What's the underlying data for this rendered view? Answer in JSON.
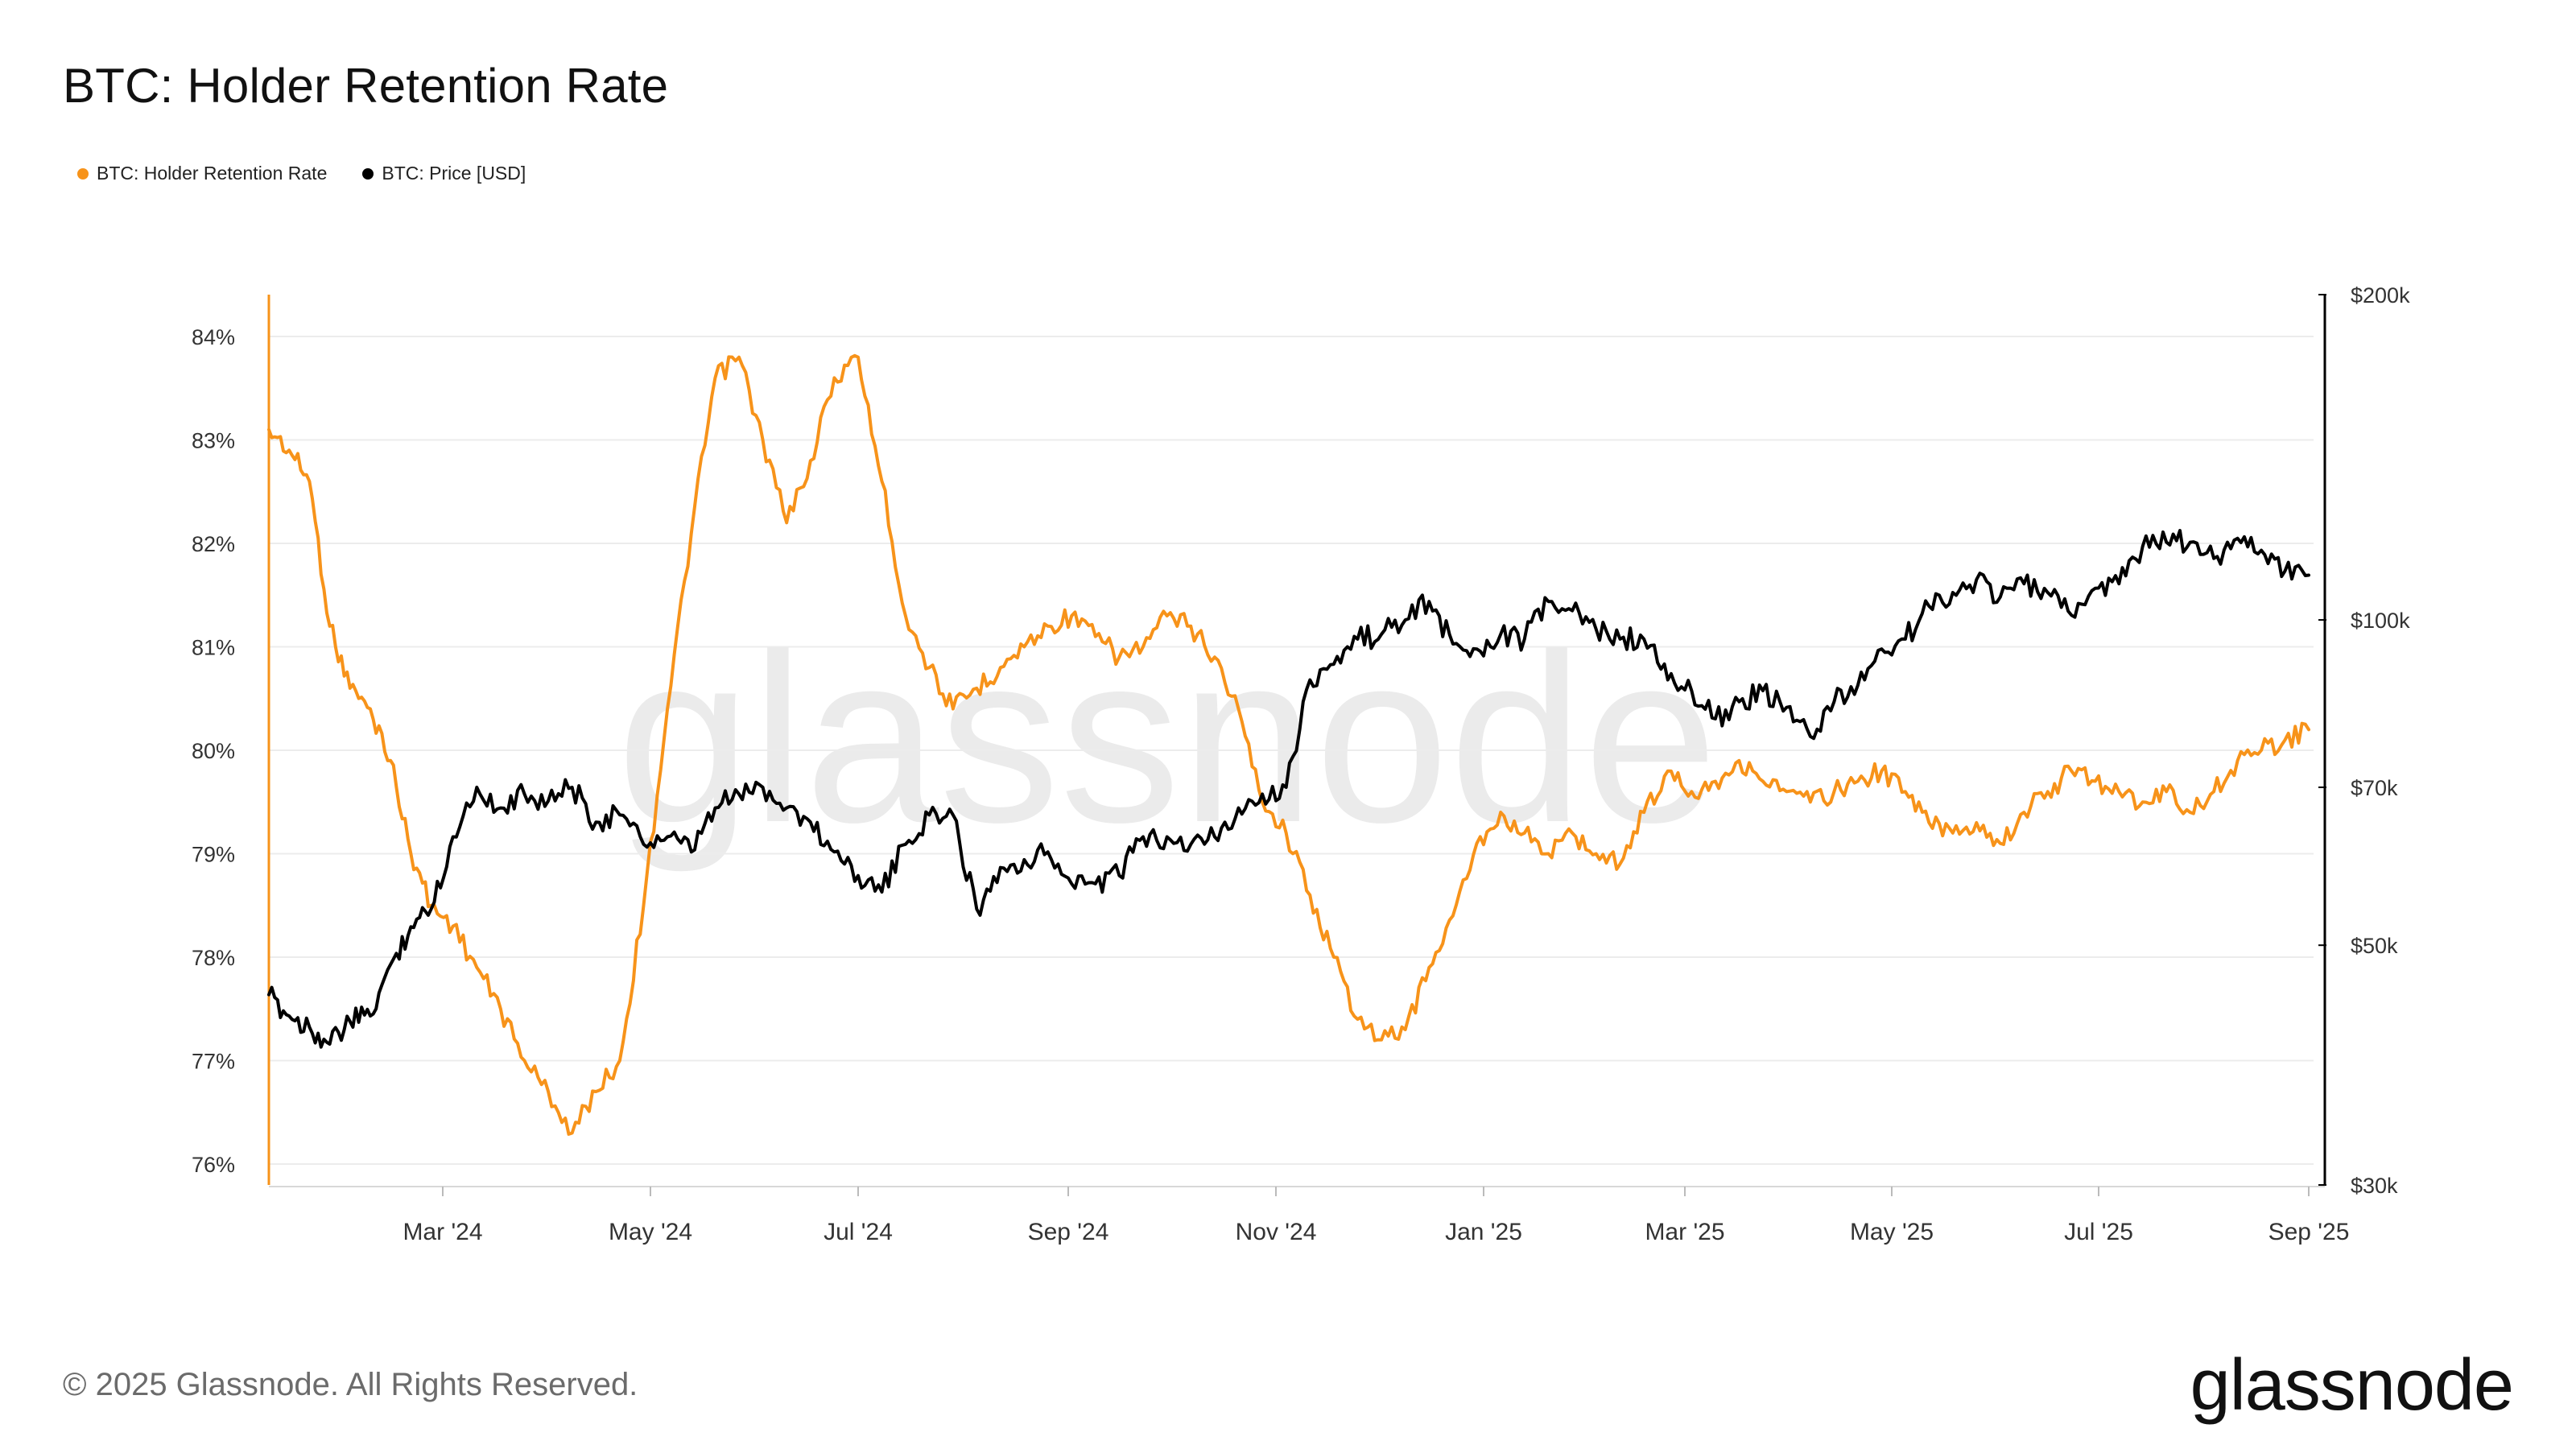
{
  "title": "BTC: Holder Retention Rate",
  "legend": [
    {
      "label": "BTC: Holder Retention Rate",
      "color": "#f7931a"
    },
    {
      "label": "BTC: Price [USD]",
      "color": "#000000"
    }
  ],
  "watermark": "glassnode",
  "footer": {
    "copyright": "© 2025 Glassnode. All Rights Reserved.",
    "logo": "glassnode"
  },
  "chart_data": {
    "type": "line",
    "x_ticks": [
      "Mar '24",
      "May '24",
      "Jul '24",
      "Sep '24",
      "Nov '24",
      "Jan '25",
      "Mar '25",
      "May '25",
      "Jul '25",
      "Sep '25"
    ],
    "x_tick_dates": [
      "2024-03-01",
      "2024-05-01",
      "2024-07-01",
      "2024-09-01",
      "2024-11-01",
      "2025-01-01",
      "2025-03-01",
      "2025-05-01",
      "2025-07-01",
      "2025-09-01"
    ],
    "xlim": [
      "2024-01-01",
      "2025-09-01"
    ],
    "y_left": {
      "ticks": [
        "84%",
        "83%",
        "82%",
        "81%",
        "80%",
        "79%",
        "78%",
        "77%",
        "76%"
      ],
      "range": [
        75.8,
        84.4
      ],
      "scale": "linear"
    },
    "y_right": {
      "ticks": [
        "$200k",
        "$100k",
        "$70k",
        "$50k",
        "$30k"
      ],
      "tick_values": [
        200000,
        100000,
        70000,
        50000,
        30000
      ],
      "range": [
        30000,
        200000
      ],
      "scale": "log"
    },
    "grid": true,
    "legend_position": "top-left",
    "series": [
      {
        "name": "BTC: Holder Retention Rate",
        "axis": "left",
        "color": "#f7931a",
        "points": [
          [
            "2024-01-01",
            83.1
          ],
          [
            "2024-01-08",
            82.9
          ],
          [
            "2024-01-15",
            82.6
          ],
          [
            "2024-01-22",
            81.2
          ],
          [
            "2024-01-29",
            80.6
          ],
          [
            "2024-02-05",
            80.4
          ],
          [
            "2024-02-12",
            79.9
          ],
          [
            "2024-02-19",
            79.0
          ],
          [
            "2024-02-26",
            78.5
          ],
          [
            "2024-03-04",
            78.3
          ],
          [
            "2024-03-11",
            77.9
          ],
          [
            "2024-03-18",
            77.5
          ],
          [
            "2024-03-25",
            77.0
          ],
          [
            "2024-04-01",
            76.7
          ],
          [
            "2024-04-08",
            76.3
          ],
          [
            "2024-04-15",
            76.7
          ],
          [
            "2024-04-22",
            77.0
          ],
          [
            "2024-04-29",
            78.5
          ],
          [
            "2024-05-06",
            80.4
          ],
          [
            "2024-05-13",
            82.1
          ],
          [
            "2024-05-20",
            83.6
          ],
          [
            "2024-05-27",
            83.8
          ],
          [
            "2024-06-03",
            83.0
          ],
          [
            "2024-06-10",
            82.2
          ],
          [
            "2024-06-17",
            82.8
          ],
          [
            "2024-06-24",
            83.6
          ],
          [
            "2024-07-01",
            83.8
          ],
          [
            "2024-07-08",
            82.6
          ],
          [
            "2024-07-15",
            81.3
          ],
          [
            "2024-07-22",
            80.8
          ],
          [
            "2024-07-29",
            80.4
          ],
          [
            "2024-08-05",
            80.6
          ],
          [
            "2024-08-12",
            80.8
          ],
          [
            "2024-08-19",
            81.0
          ],
          [
            "2024-08-26",
            81.2
          ],
          [
            "2024-09-02",
            81.3
          ],
          [
            "2024-09-09",
            81.1
          ],
          [
            "2024-09-16",
            80.9
          ],
          [
            "2024-09-23",
            81.0
          ],
          [
            "2024-09-30",
            81.3
          ],
          [
            "2024-10-07",
            81.2
          ],
          [
            "2024-10-14",
            80.9
          ],
          [
            "2024-10-21",
            80.4
          ],
          [
            "2024-10-28",
            79.5
          ],
          [
            "2024-11-04",
            79.2
          ],
          [
            "2024-11-11",
            78.6
          ],
          [
            "2024-11-18",
            78.0
          ],
          [
            "2024-11-25",
            77.4
          ],
          [
            "2024-12-02",
            77.2
          ],
          [
            "2024-12-09",
            77.3
          ],
          [
            "2024-12-16",
            77.9
          ],
          [
            "2024-12-23",
            78.4
          ],
          [
            "2024-12-30",
            79.1
          ],
          [
            "2025-01-06",
            79.4
          ],
          [
            "2025-01-13",
            79.2
          ],
          [
            "2025-01-20",
            79.0
          ],
          [
            "2025-01-27",
            79.2
          ],
          [
            "2025-02-03",
            79.0
          ],
          [
            "2025-02-10",
            78.9
          ],
          [
            "2025-02-17",
            79.4
          ],
          [
            "2025-02-24",
            79.8
          ],
          [
            "2025-03-03",
            79.6
          ],
          [
            "2025-03-10",
            79.7
          ],
          [
            "2025-03-17",
            79.9
          ],
          [
            "2025-03-24",
            79.7
          ],
          [
            "2025-03-31",
            79.6
          ],
          [
            "2025-04-07",
            79.5
          ],
          [
            "2025-04-14",
            79.6
          ],
          [
            "2025-04-21",
            79.7
          ],
          [
            "2025-04-28",
            79.8
          ],
          [
            "2025-05-05",
            79.6
          ],
          [
            "2025-05-12",
            79.3
          ],
          [
            "2025-05-19",
            79.2
          ],
          [
            "2025-05-26",
            79.3
          ],
          [
            "2025-06-02",
            79.1
          ],
          [
            "2025-06-09",
            79.4
          ],
          [
            "2025-06-16",
            79.6
          ],
          [
            "2025-06-23",
            79.8
          ],
          [
            "2025-06-30",
            79.7
          ],
          [
            "2025-07-07",
            79.6
          ],
          [
            "2025-07-14",
            79.5
          ],
          [
            "2025-07-21",
            79.6
          ],
          [
            "2025-07-28",
            79.4
          ],
          [
            "2025-08-04",
            79.6
          ],
          [
            "2025-08-11",
            79.9
          ],
          [
            "2025-08-18",
            80.0
          ],
          [
            "2025-08-25",
            80.1
          ],
          [
            "2025-09-01",
            80.2
          ]
        ]
      },
      {
        "name": "BTC: Price [USD]",
        "axis": "right",
        "color": "#000000",
        "points": [
          [
            "2024-01-01",
            45000
          ],
          [
            "2024-01-08",
            43000
          ],
          [
            "2024-01-15",
            42000
          ],
          [
            "2024-01-22",
            40500
          ],
          [
            "2024-01-29",
            42500
          ],
          [
            "2024-02-05",
            43000
          ],
          [
            "2024-02-12",
            48000
          ],
          [
            "2024-02-19",
            52000
          ],
          [
            "2024-02-26",
            54000
          ],
          [
            "2024-03-04",
            63000
          ],
          [
            "2024-03-11",
            70000
          ],
          [
            "2024-03-18",
            67000
          ],
          [
            "2024-03-25",
            69000
          ],
          [
            "2024-04-01",
            68000
          ],
          [
            "2024-04-08",
            70000
          ],
          [
            "2024-04-15",
            65000
          ],
          [
            "2024-04-22",
            66000
          ],
          [
            "2024-04-29",
            62000
          ],
          [
            "2024-05-06",
            63000
          ],
          [
            "2024-05-13",
            61000
          ],
          [
            "2024-05-20",
            67000
          ],
          [
            "2024-05-27",
            69000
          ],
          [
            "2024-06-03",
            70000
          ],
          [
            "2024-06-10",
            67000
          ],
          [
            "2024-06-17",
            65000
          ],
          [
            "2024-06-24",
            61000
          ],
          [
            "2024-07-01",
            58000
          ],
          [
            "2024-07-08",
            56000
          ],
          [
            "2024-07-15",
            62000
          ],
          [
            "2024-07-22",
            66000
          ],
          [
            "2024-07-29",
            66000
          ],
          [
            "2024-08-05",
            54000
          ],
          [
            "2024-08-12",
            59000
          ],
          [
            "2024-08-19",
            60000
          ],
          [
            "2024-08-26",
            61000
          ],
          [
            "2024-09-02",
            57000
          ],
          [
            "2024-09-09",
            57000
          ],
          [
            "2024-09-16",
            58000
          ],
          [
            "2024-09-23",
            63000
          ],
          [
            "2024-09-30",
            63000
          ],
          [
            "2024-10-07",
            62000
          ],
          [
            "2024-10-14",
            63000
          ],
          [
            "2024-10-21",
            67000
          ],
          [
            "2024-10-28",
            69000
          ],
          [
            "2024-11-04",
            70000
          ],
          [
            "2024-11-11",
            88000
          ],
          [
            "2024-11-18",
            91000
          ],
          [
            "2024-11-25",
            96000
          ],
          [
            "2024-12-02",
            97000
          ],
          [
            "2024-12-09",
            100000
          ],
          [
            "2024-12-16",
            104000
          ],
          [
            "2024-12-23",
            95000
          ],
          [
            "2024-12-30",
            94000
          ],
          [
            "2025-01-06",
            97000
          ],
          [
            "2025-01-13",
            96000
          ],
          [
            "2025-01-20",
            104000
          ],
          [
            "2025-01-27",
            102000
          ],
          [
            "2025-02-03",
            98000
          ],
          [
            "2025-02-10",
            96000
          ],
          [
            "2025-02-17",
            96000
          ],
          [
            "2025-02-24",
            88000
          ],
          [
            "2025-03-03",
            86000
          ],
          [
            "2025-03-10",
            81000
          ],
          [
            "2025-03-17",
            84000
          ],
          [
            "2025-03-24",
            86000
          ],
          [
            "2025-03-31",
            83000
          ],
          [
            "2025-04-07",
            78000
          ],
          [
            "2025-04-14",
            84000
          ],
          [
            "2025-04-21",
            87000
          ],
          [
            "2025-04-28",
            94000
          ],
          [
            "2025-05-05",
            96000
          ],
          [
            "2025-05-12",
            103000
          ],
          [
            "2025-05-19",
            106000
          ],
          [
            "2025-05-26",
            109000
          ],
          [
            "2025-06-02",
            105000
          ],
          [
            "2025-06-09",
            108000
          ],
          [
            "2025-06-16",
            106000
          ],
          [
            "2025-06-23",
            101000
          ],
          [
            "2025-06-30",
            107000
          ],
          [
            "2025-07-07",
            108000
          ],
          [
            "2025-07-14",
            117000
          ],
          [
            "2025-07-21",
            118000
          ],
          [
            "2025-07-28",
            118000
          ],
          [
            "2025-08-04",
            114000
          ],
          [
            "2025-08-11",
            119000
          ],
          [
            "2025-08-18",
            116000
          ],
          [
            "2025-08-25",
            111000
          ],
          [
            "2025-09-01",
            110000
          ]
        ]
      }
    ]
  }
}
